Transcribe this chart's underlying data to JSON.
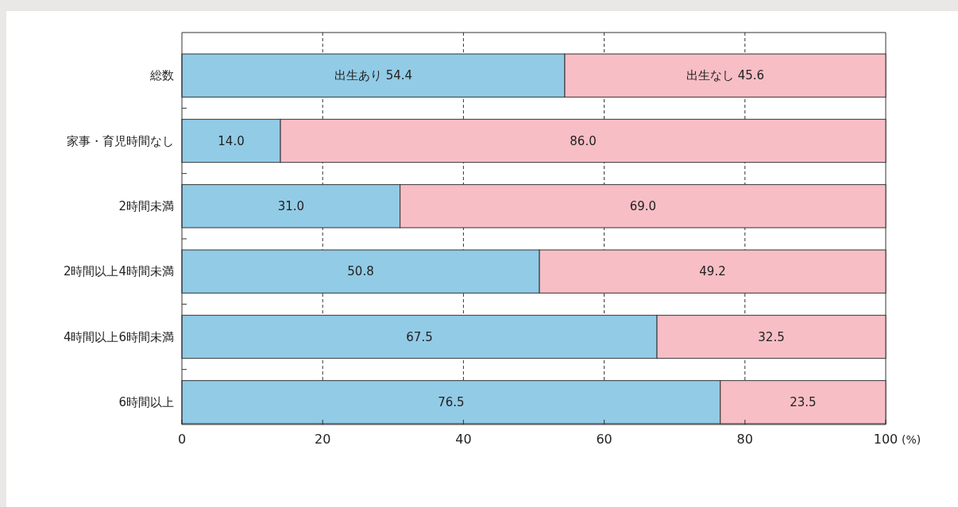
{
  "chart_data": {
    "type": "bar",
    "orientation": "horizontal",
    "stacked": true,
    "xlabel": "(%)",
    "categories": [
      "総数",
      "家事・育児時間なし",
      "2時間未満",
      "2時間以上4時間未満",
      "4時間以上6時間未満",
      "6時間以上"
    ],
    "series": [
      {
        "name": "出生あり",
        "color": "#92cbe6",
        "values": [
          54.4,
          14.0,
          31.0,
          50.8,
          67.5,
          76.5
        ],
        "value_labels": [
          "54.4",
          "14.0",
          "31.0",
          "50.8",
          "67.5",
          "76.5"
        ]
      },
      {
        "name": "出生なし",
        "color": "#f7bec6",
        "values": [
          45.6,
          86.0,
          69.0,
          49.2,
          32.5,
          23.5
        ],
        "value_labels": [
          "45.6",
          "86.0",
          "69.0",
          "49.2",
          "32.5",
          "23.5"
        ]
      }
    ],
    "xlim": [
      0,
      100
    ],
    "xticks": [
      0,
      20,
      40,
      60,
      80,
      100
    ],
    "grid": "x"
  }
}
